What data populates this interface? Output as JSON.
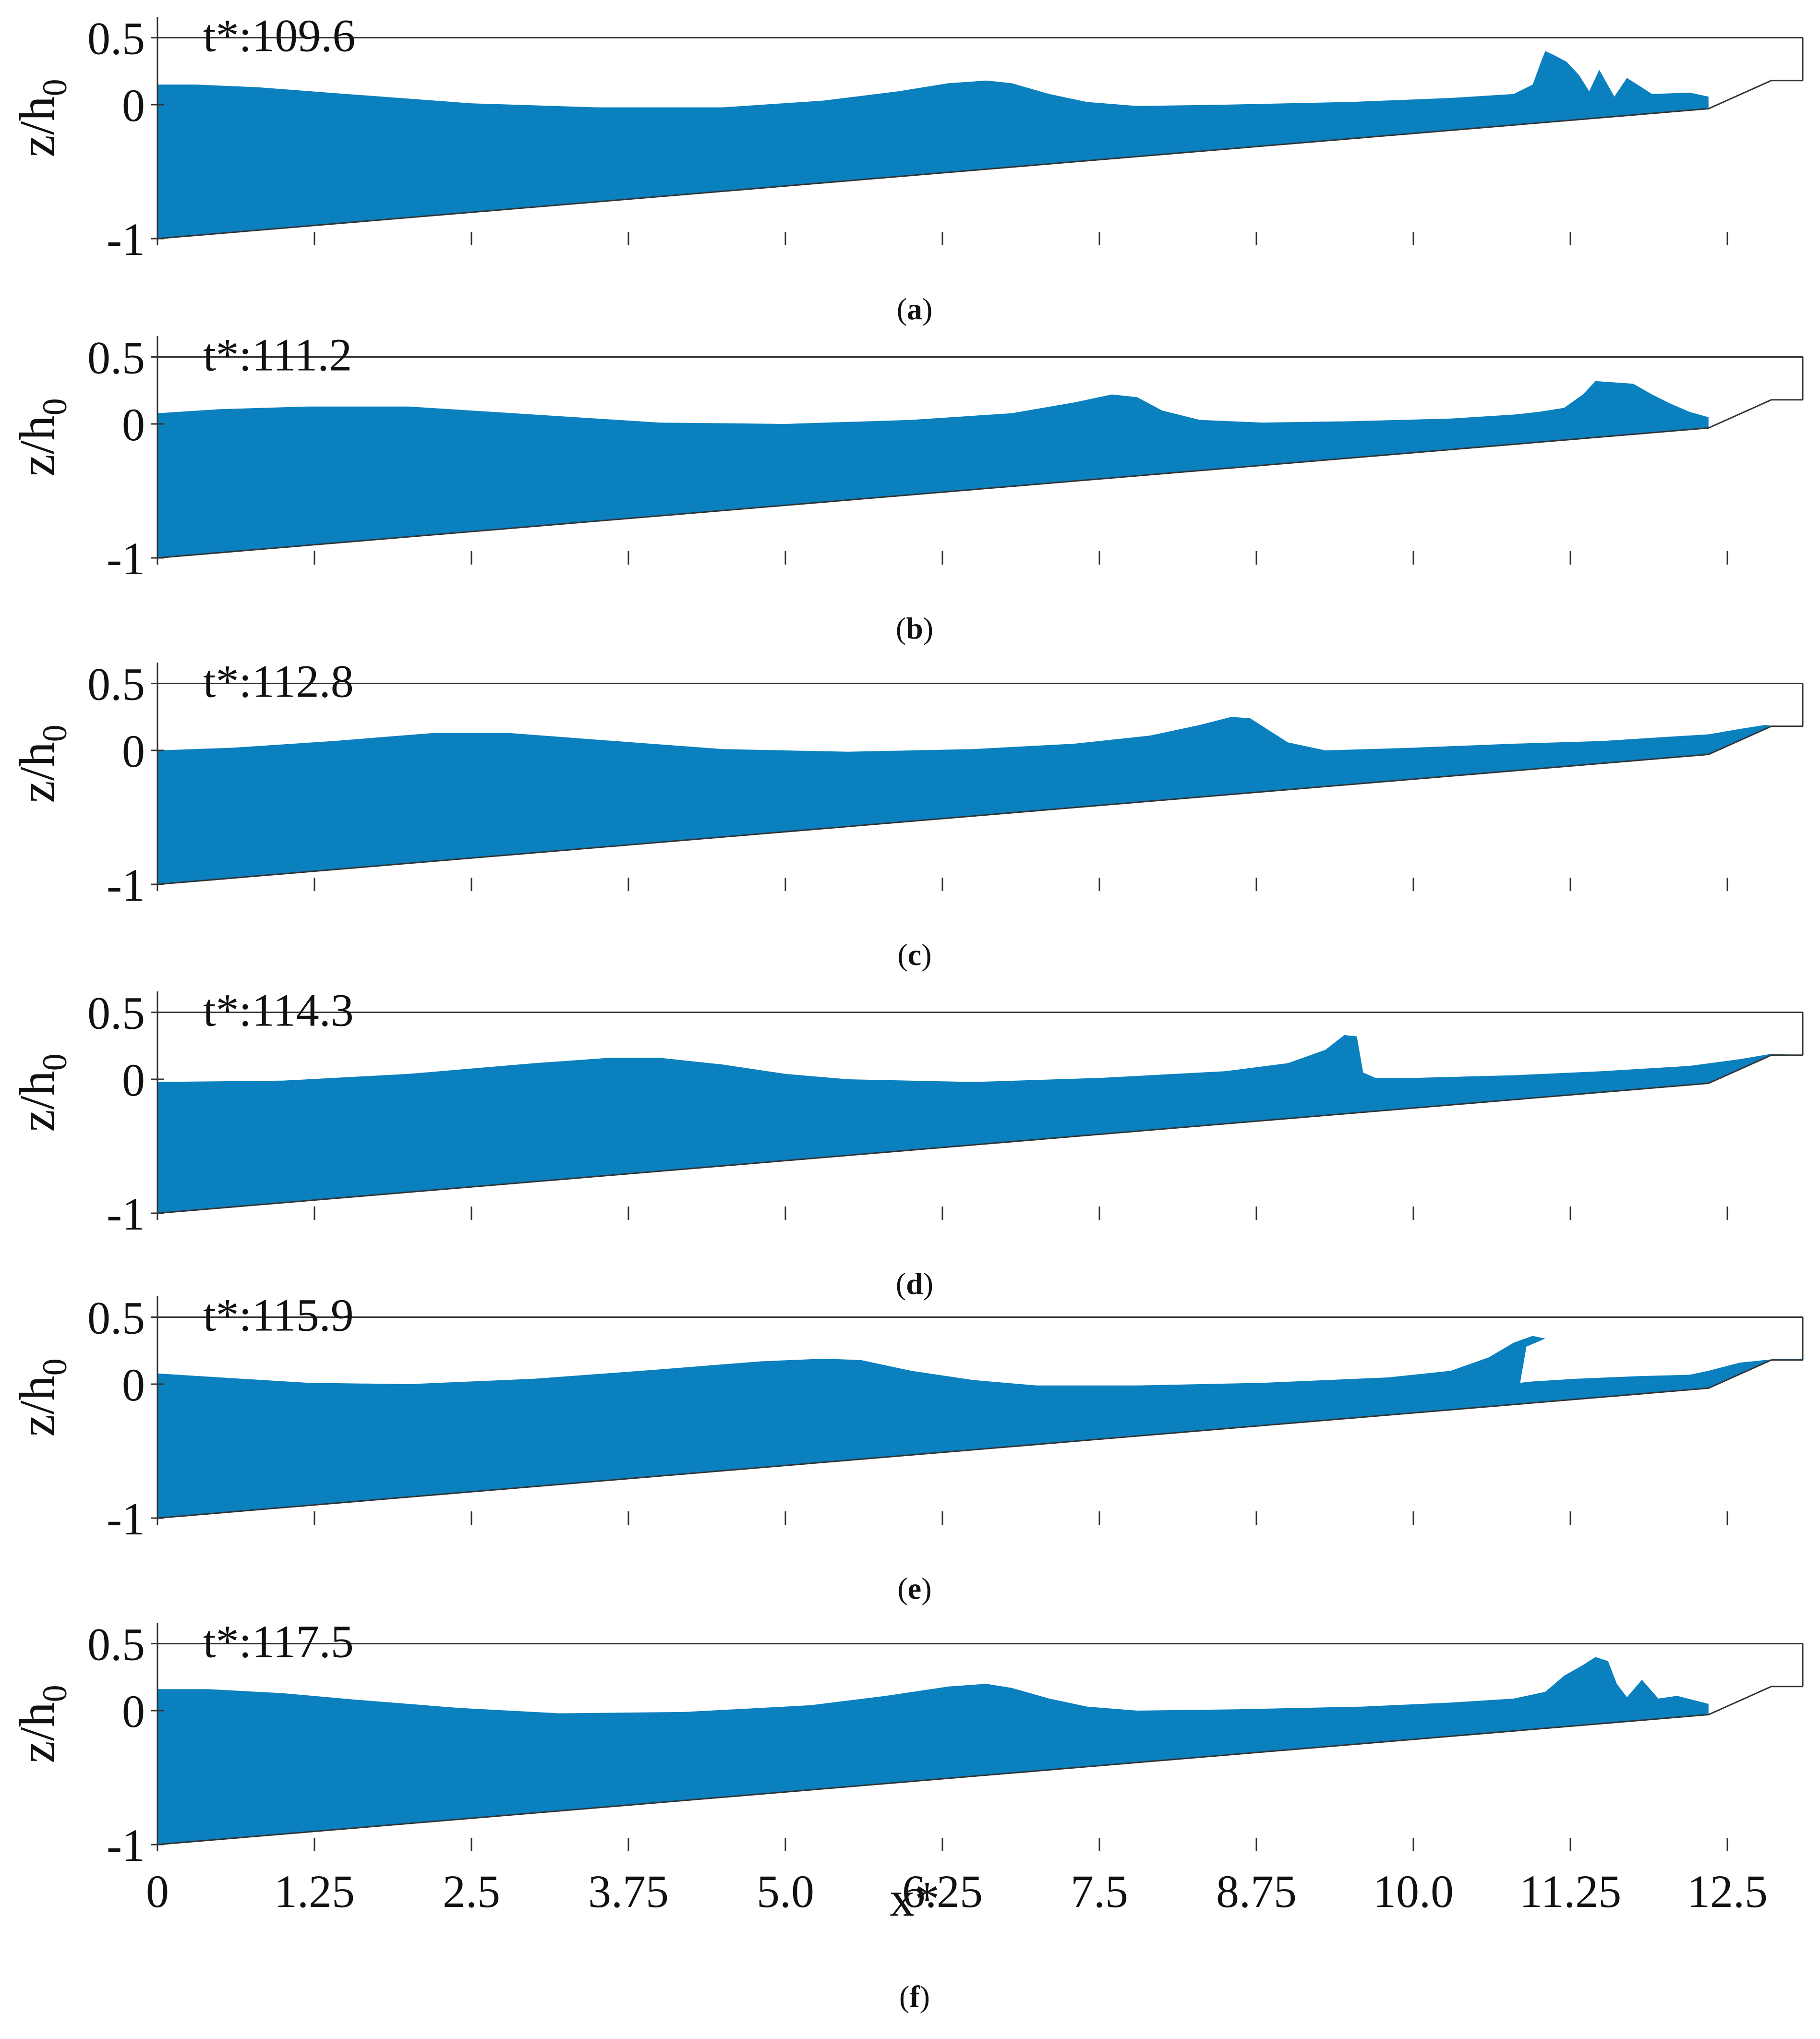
{
  "chart_data": {
    "type": "area",
    "title": "",
    "xlabel": "x*",
    "ylabel": "z/h",
    "ylabel_subscript": "0",
    "xlim": [
      0,
      13.1
    ],
    "ylim": [
      -1,
      0.5
    ],
    "x_tick_labels": [
      "0",
      "1.25",
      "2.5",
      "3.75",
      "5.0",
      "6.25",
      "7.5",
      "8.75",
      "10.0",
      "11.25",
      "12.5"
    ],
    "x_ticks": [
      0,
      1.25,
      2.5,
      3.75,
      5.0,
      6.25,
      7.5,
      8.75,
      10.0,
      11.25,
      12.5
    ],
    "y_tick_labels": [
      "0.5",
      "0",
      "-1"
    ],
    "y_ticks": [
      0.5,
      0,
      -1
    ],
    "bathymetry": {
      "x": [
        0,
        12.35,
        12.85,
        13.1
      ],
      "z": [
        -1,
        -0.03,
        0.18,
        0.18
      ],
      "still_water_level": 0
    },
    "panels": [
      {
        "id": "a",
        "caption_open": "(",
        "caption_letter": "a",
        "caption_close": ")",
        "time_label": "t*:109.6",
        "surface": {
          "x": [
            0,
            0.3,
            0.8,
            1.5,
            2.5,
            3.5,
            4.5,
            5.3,
            5.9,
            6.3,
            6.6,
            6.8,
            7.1,
            7.4,
            7.8,
            8.5,
            9.5,
            10.3,
            10.8,
            10.95,
            11.02,
            11.05,
            11.12,
            11.22,
            11.32,
            11.4,
            11.48,
            11.6,
            11.7,
            11.9,
            12.2,
            12.35
          ],
          "z": [
            0.15,
            0.15,
            0.13,
            0.08,
            0.01,
            -0.02,
            -0.02,
            0.03,
            0.1,
            0.16,
            0.18,
            0.16,
            0.08,
            0.02,
            -0.01,
            0.0,
            0.02,
            0.05,
            0.08,
            0.15,
            0.33,
            0.4,
            0.37,
            0.32,
            0.22,
            0.1,
            0.26,
            0.06,
            0.2,
            0.08,
            0.09,
            0.06
          ]
        }
      },
      {
        "id": "b",
        "caption_open": "(",
        "caption_letter": "b",
        "caption_close": ")",
        "time_label": "t*:111.2",
        "surface": {
          "x": [
            0,
            0.5,
            1.2,
            2.0,
            3.0,
            4.0,
            5.0,
            6.0,
            6.8,
            7.3,
            7.6,
            7.8,
            8.0,
            8.3,
            8.8,
            9.5,
            10.3,
            10.8,
            11.0,
            11.2,
            11.35,
            11.45,
            11.6,
            11.75,
            11.9,
            12.05,
            12.2,
            12.35
          ],
          "z": [
            0.08,
            0.11,
            0.13,
            0.13,
            0.07,
            0.01,
            0.0,
            0.03,
            0.08,
            0.16,
            0.22,
            0.2,
            0.1,
            0.03,
            0.01,
            0.02,
            0.04,
            0.07,
            0.09,
            0.12,
            0.22,
            0.32,
            0.31,
            0.3,
            0.22,
            0.15,
            0.09,
            0.05
          ]
        }
      },
      {
        "id": "c",
        "caption_open": "(",
        "caption_letter": "c",
        "caption_close": ")",
        "time_label": "t*:112.8",
        "surface": {
          "x": [
            0,
            0.6,
            1.4,
            2.2,
            2.8,
            3.5,
            4.5,
            5.5,
            6.5,
            7.3,
            7.9,
            8.3,
            8.55,
            8.7,
            8.85,
            9.0,
            9.3,
            10.0,
            10.8,
            11.5,
            12.0,
            12.35,
            12.6,
            12.8,
            12.9,
            13.1
          ],
          "z": [
            0.0,
            0.02,
            0.07,
            0.13,
            0.13,
            0.08,
            0.01,
            -0.01,
            0.01,
            0.05,
            0.11,
            0.19,
            0.25,
            0.24,
            0.15,
            0.06,
            0.0,
            0.02,
            0.05,
            0.07,
            0.1,
            0.12,
            0.16,
            0.19,
            0.18,
            0.18
          ]
        }
      },
      {
        "id": "d",
        "caption_open": "(",
        "caption_letter": "d",
        "caption_close": ")",
        "time_label": "t*:114.3",
        "surface": {
          "x": [
            0,
            1.0,
            2.0,
            3.0,
            3.6,
            4.0,
            4.5,
            5.0,
            5.5,
            6.5,
            7.5,
            8.5,
            9.0,
            9.3,
            9.45,
            9.55,
            9.6,
            9.7,
            10.0,
            10.8,
            11.5,
            12.2,
            12.6,
            12.85,
            13.1
          ],
          "z": [
            -0.02,
            -0.01,
            0.04,
            0.12,
            0.16,
            0.16,
            0.11,
            0.04,
            0.0,
            -0.02,
            0.01,
            0.06,
            0.12,
            0.22,
            0.33,
            0.32,
            0.05,
            0.01,
            0.01,
            0.03,
            0.06,
            0.1,
            0.15,
            0.19,
            0.18
          ]
        }
      },
      {
        "id": "e",
        "caption_open": "(",
        "caption_letter": "e",
        "caption_close": ")",
        "time_label": "t*:115.9",
        "surface": {
          "x": [
            0,
            0.5,
            1.2,
            2.0,
            3.0,
            4.0,
            4.8,
            5.3,
            5.6,
            6.0,
            6.5,
            7.0,
            7.8,
            8.8,
            9.8,
            10.3,
            10.6,
            10.8,
            10.95,
            11.05,
            10.9,
            10.85,
            10.95,
            11.3,
            11.8,
            12.2,
            12.35,
            12.6,
            12.9,
            13.1
          ],
          "z": [
            0.08,
            0.05,
            0.01,
            0.0,
            0.04,
            0.11,
            0.17,
            0.19,
            0.18,
            0.1,
            0.03,
            -0.01,
            -0.01,
            0.01,
            0.05,
            0.1,
            0.2,
            0.31,
            0.36,
            0.34,
            0.28,
            0.01,
            0.02,
            0.04,
            0.06,
            0.07,
            0.1,
            0.16,
            0.19,
            0.19
          ]
        }
      },
      {
        "id": "f",
        "caption_open": "(",
        "caption_letter": "f",
        "caption_close": ")",
        "time_label": "t*:117.5",
        "surface": {
          "x": [
            0,
            0.4,
            1.0,
            1.6,
            2.4,
            3.2,
            4.2,
            5.2,
            5.8,
            6.3,
            6.6,
            6.8,
            7.1,
            7.4,
            7.8,
            8.6,
            9.6,
            10.3,
            10.8,
            11.05,
            11.2,
            11.35,
            11.45,
            11.55,
            11.62,
            11.7,
            11.82,
            11.95,
            12.1,
            12.35
          ],
          "z": [
            0.16,
            0.16,
            0.13,
            0.08,
            0.02,
            -0.02,
            -0.01,
            0.04,
            0.11,
            0.18,
            0.2,
            0.17,
            0.09,
            0.03,
            0.0,
            0.01,
            0.03,
            0.06,
            0.09,
            0.14,
            0.26,
            0.34,
            0.4,
            0.37,
            0.2,
            0.1,
            0.23,
            0.09,
            0.11,
            0.05
          ]
        }
      }
    ]
  },
  "colors": {
    "water": "#0a80bf",
    "axis": "#333333",
    "bed": "#333333",
    "text": "#111111",
    "background": "#ffffff"
  }
}
